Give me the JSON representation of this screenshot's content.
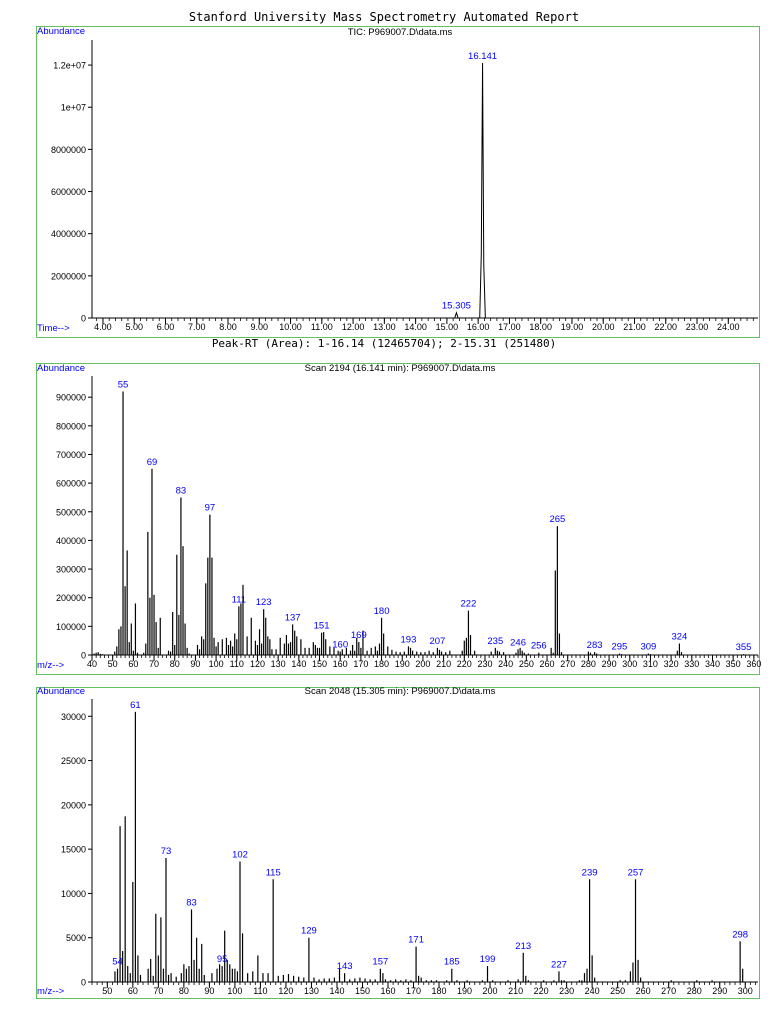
{
  "page": {
    "report_title": "Stanford University Mass Spectrometry Automated Report",
    "peak_summary": "Peak-RT (Area): 1-16.14 (12465704); 2-15.31 (251480)",
    "colors": {
      "frame": "#63c163",
      "label": "#0000ff",
      "trace": "#000000"
    }
  },
  "chart_data": [
    {
      "type": "line",
      "title": "TIC: P969007.D\\data.ms",
      "ylabel": "Abundance",
      "xlabel": "Time-->",
      "xlim": [
        3.65,
        24.95
      ],
      "ylim": [
        0,
        13000000
      ],
      "x_ticks": [
        4.0,
        5.0,
        6.0,
        7.0,
        8.0,
        9.0,
        10.0,
        11.0,
        12.0,
        13.0,
        14.0,
        15.0,
        16.0,
        17.0,
        18.0,
        19.0,
        20.0,
        21.0,
        22.0,
        23.0,
        24.0
      ],
      "x_tick_labels": [
        "4.00",
        "5.00",
        "6.00",
        "7.00",
        "8.00",
        "9.00",
        "10.00",
        "11.00",
        "12.00",
        "13.00",
        "14.00",
        "15.00",
        "16.00",
        "17.00",
        "18.00",
        "19.00",
        "20.00",
        "21.00",
        "22.00",
        "23.00",
        "24.00"
      ],
      "y_ticks": [
        0,
        2000000,
        4000000,
        6000000,
        8000000,
        10000000,
        12000000
      ],
      "y_tick_labels": [
        "0",
        "2000000",
        "4000000",
        "6000000",
        "8000000",
        "1e+07",
        "1.2e+07"
      ],
      "series": [
        {
          "x": [
            3.65,
            15.0,
            15.25,
            15.305,
            15.36,
            16.05,
            16.1,
            16.141,
            16.18,
            16.23,
            24.95
          ],
          "y": [
            0,
            0,
            0,
            251480,
            0,
            0,
            3000000,
            12100000,
            2500000,
            0,
            0
          ]
        }
      ],
      "peak_labels": [
        {
          "x": 15.305,
          "y": 251480,
          "text": "15.305"
        },
        {
          "x": 16.141,
          "y": 12100000,
          "text": "16.141"
        }
      ]
    },
    {
      "type": "bar",
      "title": "Scan 2194 (16.141 min): P969007.D\\data.ms",
      "ylabel": "Abundance",
      "xlabel": "m/z-->",
      "xlim": [
        40,
        362
      ],
      "ylim": [
        0,
        960000
      ],
      "x_ticks": [
        40,
        50,
        60,
        70,
        80,
        90,
        100,
        110,
        120,
        130,
        140,
        150,
        160,
        170,
        180,
        190,
        200,
        210,
        220,
        230,
        240,
        250,
        260,
        270,
        280,
        290,
        300,
        310,
        320,
        330,
        340,
        350,
        360
      ],
      "y_ticks": [
        0,
        100000,
        200000,
        300000,
        400000,
        500000,
        600000,
        700000,
        800000,
        900000
      ],
      "mz": [
        41,
        42,
        43,
        44,
        45,
        51,
        52,
        53,
        54,
        55,
        56,
        57,
        58,
        59,
        60,
        61,
        62,
        65,
        66,
        67,
        68,
        69,
        70,
        71,
        72,
        73,
        77,
        78,
        79,
        80,
        81,
        82,
        83,
        84,
        85,
        86,
        87,
        91,
        92,
        93,
        94,
        95,
        96,
        97,
        98,
        99,
        100,
        101,
        103,
        105,
        106,
        107,
        108,
        109,
        110,
        111,
        112,
        113,
        115,
        117,
        119,
        120,
        121,
        122,
        123,
        124,
        125,
        126,
        127,
        129,
        131,
        133,
        134,
        135,
        136,
        137,
        138,
        139,
        141,
        143,
        145,
        147,
        148,
        149,
        150,
        151,
        152,
        153,
        155,
        157,
        159,
        160,
        161,
        163,
        165,
        166,
        167,
        168,
        169,
        170,
        171,
        173,
        175,
        177,
        178,
        179,
        180,
        181,
        183,
        185,
        187,
        189,
        191,
        193,
        194,
        195,
        197,
        199,
        201,
        203,
        205,
        207,
        208,
        209,
        211,
        213,
        219,
        220,
        221,
        222,
        223,
        225,
        233,
        235,
        236,
        237,
        239,
        245,
        246,
        247,
        248,
        249,
        251,
        256,
        262,
        263,
        264,
        265,
        266,
        267,
        280,
        281,
        283,
        284,
        295,
        296,
        309,
        310,
        323,
        324,
        325,
        355
      ],
      "values": [
        5000,
        8000,
        10000,
        4000,
        3000,
        12000,
        30000,
        90000,
        100000,
        920000,
        240000,
        365000,
        45000,
        110000,
        15000,
        180000,
        8000,
        8000,
        40000,
        430000,
        200000,
        650000,
        210000,
        115000,
        25000,
        130000,
        15000,
        12000,
        150000,
        35000,
        350000,
        140000,
        550000,
        380000,
        110000,
        25000,
        5000,
        35000,
        20000,
        65000,
        55000,
        250000,
        340000,
        490000,
        340000,
        60000,
        30000,
        45000,
        55000,
        60000,
        35000,
        50000,
        30000,
        75000,
        55000,
        170000,
        180000,
        245000,
        65000,
        130000,
        50000,
        35000,
        90000,
        40000,
        160000,
        130000,
        65000,
        55000,
        20000,
        20000,
        60000,
        40000,
        70000,
        40000,
        45000,
        107000,
        85000,
        65000,
        55000,
        25000,
        25000,
        45000,
        35000,
        25000,
        25000,
        78000,
        80000,
        55000,
        30000,
        25000,
        15000,
        12000,
        20000,
        25000,
        15000,
        35000,
        15000,
        60000,
        45000,
        25000,
        85000,
        15000,
        25000,
        30000,
        15000,
        40000,
        130000,
        75000,
        30000,
        18000,
        12000,
        10000,
        12000,
        30000,
        25000,
        15000,
        12000,
        10000,
        10000,
        15000,
        10000,
        25000,
        18000,
        12000,
        10000,
        15000,
        15000,
        50000,
        60000,
        155000,
        70000,
        15000,
        12000,
        25000,
        15000,
        12000,
        10000,
        8000,
        20000,
        25000,
        15000,
        8000,
        5000,
        8000,
        25000,
        8000,
        295000,
        450000,
        75000,
        10000,
        12000,
        8000,
        10000,
        5000,
        5000,
        3000,
        5000,
        3000,
        15000,
        40000,
        10000,
        3000
      ],
      "peak_labels": [
        {
          "mz": 55,
          "text": "55"
        },
        {
          "mz": 69,
          "text": "69"
        },
        {
          "mz": 83,
          "text": "83"
        },
        {
          "mz": 97,
          "text": "97"
        },
        {
          "mz": 111,
          "text": "111"
        },
        {
          "mz": 123,
          "text": "123"
        },
        {
          "mz": 137,
          "text": "137"
        },
        {
          "mz": 151,
          "text": "151"
        },
        {
          "mz": 160,
          "text": "160"
        },
        {
          "mz": 169,
          "text": "169"
        },
        {
          "mz": 180,
          "text": "180"
        },
        {
          "mz": 193,
          "text": "193"
        },
        {
          "mz": 207,
          "text": "207"
        },
        {
          "mz": 222,
          "text": "222"
        },
        {
          "mz": 235,
          "text": "235"
        },
        {
          "mz": 246,
          "text": "246"
        },
        {
          "mz": 256,
          "text": "256"
        },
        {
          "mz": 265,
          "text": "265"
        },
        {
          "mz": 283,
          "text": "283"
        },
        {
          "mz": 295,
          "text": "295"
        },
        {
          "mz": 309,
          "text": "309"
        },
        {
          "mz": 324,
          "text": "324"
        },
        {
          "mz": 355,
          "text": "355"
        }
      ]
    },
    {
      "type": "bar",
      "title": "Scan 2048 (15.305 min): P969007.D\\data.ms",
      "ylabel": "Abundance",
      "xlabel": "m/z-->",
      "xlim": [
        44,
        305
      ],
      "ylim": [
        0,
        31500
      ],
      "x_ticks": [
        50,
        60,
        70,
        80,
        90,
        100,
        110,
        120,
        130,
        140,
        150,
        160,
        170,
        180,
        190,
        200,
        210,
        220,
        230,
        240,
        250,
        260,
        270,
        280,
        290,
        300
      ],
      "y_ticks": [
        0,
        5000,
        10000,
        15000,
        20000,
        25000,
        30000
      ],
      "mz": [
        53,
        54,
        55,
        56,
        57,
        58,
        59,
        60,
        61,
        62,
        63,
        66,
        67,
        68,
        69,
        70,
        71,
        72,
        73,
        74,
        75,
        77,
        79,
        80,
        81,
        82,
        83,
        84,
        85,
        86,
        87,
        88,
        91,
        93,
        94,
        95,
        96,
        97,
        98,
        99,
        100,
        101,
        102,
        103,
        105,
        107,
        109,
        111,
        113,
        115,
        117,
        119,
        121,
        123,
        125,
        127,
        129,
        131,
        133,
        135,
        137,
        139,
        141,
        143,
        145,
        147,
        149,
        151,
        153,
        155,
        157,
        158,
        159,
        161,
        163,
        165,
        167,
        169,
        171,
        172,
        173,
        175,
        177,
        179,
        183,
        185,
        187,
        191,
        197,
        199,
        201,
        207,
        211,
        213,
        214,
        215,
        221,
        225,
        227,
        228,
        229,
        235,
        236,
        237,
        238,
        239,
        240,
        241,
        251,
        253,
        255,
        256,
        257,
        258,
        259,
        271,
        281,
        287,
        298,
        299
      ],
      "values": [
        1200,
        1500,
        17600,
        3500,
        18700,
        1800,
        1000,
        11300,
        30500,
        3000,
        800,
        1500,
        2600,
        700,
        7700,
        3000,
        7300,
        1500,
        14000,
        800,
        1000,
        600,
        1000,
        2000,
        1500,
        1800,
        8200,
        2500,
        5000,
        1500,
        4300,
        800,
        1000,
        1500,
        2000,
        1800,
        5800,
        2500,
        2000,
        1500,
        1500,
        1200,
        13600,
        5500,
        1000,
        1200,
        3000,
        1000,
        1000,
        11600,
        700,
        800,
        900,
        700,
        600,
        500,
        5000,
        500,
        300,
        400,
        400,
        500,
        1500,
        1000,
        300,
        400,
        500,
        400,
        300,
        300,
        1500,
        1000,
        300,
        200,
        300,
        200,
        300,
        200,
        4000,
        700,
        500,
        200,
        200,
        200,
        200,
        1500,
        200,
        200,
        200,
        1800,
        200,
        200,
        300,
        3300,
        700,
        200,
        200,
        200,
        1200,
        200,
        200,
        200,
        200,
        1000,
        1500,
        11600,
        3000,
        500,
        200,
        200,
        1200,
        2200,
        11600,
        2500,
        500,
        200,
        200,
        200,
        4600,
        1500
      ],
      "peak_labels": [
        {
          "mz": 54,
          "text": "54"
        },
        {
          "mz": 61,
          "text": "61"
        },
        {
          "mz": 73,
          "text": "73"
        },
        {
          "mz": 83,
          "text": "83"
        },
        {
          "mz": 95,
          "text": "95"
        },
        {
          "mz": 102,
          "text": "102"
        },
        {
          "mz": 115,
          "text": "115"
        },
        {
          "mz": 129,
          "text": "129"
        },
        {
          "mz": 143,
          "text": "143"
        },
        {
          "mz": 157,
          "text": "157"
        },
        {
          "mz": 171,
          "text": "171"
        },
        {
          "mz": 185,
          "text": "185"
        },
        {
          "mz": 199,
          "text": "199"
        },
        {
          "mz": 213,
          "text": "213"
        },
        {
          "mz": 227,
          "text": "227"
        },
        {
          "mz": 239,
          "text": "239"
        },
        {
          "mz": 257,
          "text": "257"
        },
        {
          "mz": 298,
          "text": "298"
        }
      ]
    }
  ]
}
